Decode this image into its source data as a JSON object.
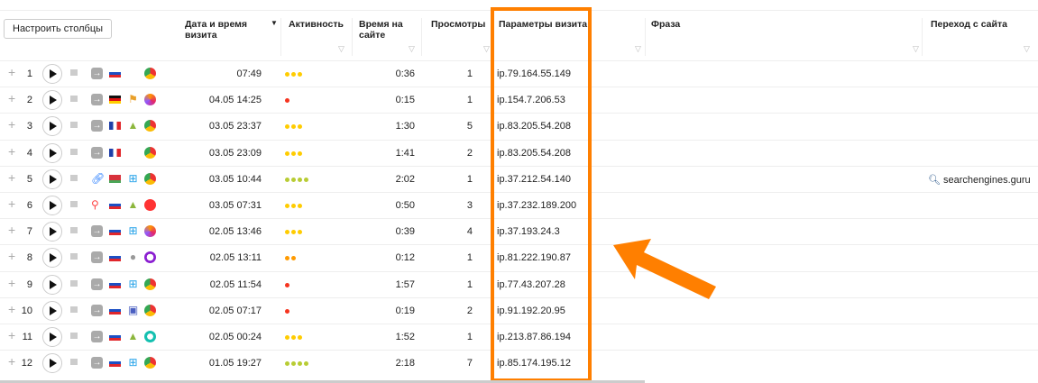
{
  "toolbar": {
    "configure_columns": "Настроить столбцы"
  },
  "headers": {
    "date": "Дата и время визита",
    "activity": "Активность",
    "time": "Время на сайте",
    "views": "Просмотры",
    "params": "Параметры визита",
    "phrase": "Фраза",
    "referrer": "Переход с сайта"
  },
  "colors": {
    "highlight": "#ff7f00",
    "dot_yellow": "#ffcc00",
    "dot_red": "#f5341f",
    "dot_green": "#b8cc34",
    "dot_orange": "#ff9a00"
  },
  "rows": [
    {
      "n": "1",
      "source": "arrow",
      "flag": "ru",
      "os": "",
      "browser": "chrome",
      "date": "07:49",
      "dots": 3,
      "dot_color": "yellow",
      "time": "0:36",
      "views": "1",
      "ip": "ip.79.164.55.149",
      "ref": ""
    },
    {
      "n": "2",
      "source": "arrow",
      "flag": "de",
      "os": "windows-xp",
      "browser": "firefox",
      "date": "04.05 14:25",
      "dots": 1,
      "dot_color": "red",
      "time": "0:15",
      "views": "1",
      "ip": "ip.154.7.206.53",
      "ref": ""
    },
    {
      "n": "3",
      "source": "arrow",
      "flag": "fr",
      "os": "android",
      "browser": "chrome",
      "date": "03.05 23:37",
      "dots": 3,
      "dot_color": "yellow",
      "time": "1:30",
      "views": "5",
      "ip": "ip.83.205.54.208",
      "ref": ""
    },
    {
      "n": "4",
      "source": "arrow",
      "flag": "fr",
      "os": "",
      "browser": "chrome",
      "date": "03.05 23:09",
      "dots": 3,
      "dot_color": "yellow",
      "time": "1:41",
      "views": "2",
      "ip": "ip.83.205.54.208",
      "ref": ""
    },
    {
      "n": "5",
      "source": "link",
      "flag": "by",
      "os": "windows",
      "browser": "chrome",
      "date": "03.05 10:44",
      "dots": 4,
      "dot_color": "green",
      "time": "2:02",
      "views": "1",
      "ip": "ip.37.212.54.140",
      "ref": "searchengines.guru"
    },
    {
      "n": "6",
      "source": "search",
      "flag": "ru",
      "os": "android",
      "browser": "yandex",
      "date": "03.05 07:31",
      "dots": 3,
      "dot_color": "yellow",
      "time": "0:50",
      "views": "3",
      "ip": "ip.37.232.189.200",
      "ref": ""
    },
    {
      "n": "7",
      "source": "arrow",
      "flag": "ru",
      "os": "windows",
      "browser": "firefox",
      "date": "02.05 13:46",
      "dots": 3,
      "dot_color": "yellow",
      "time": "0:39",
      "views": "4",
      "ip": "ip.37.193.24.3",
      "ref": ""
    },
    {
      "n": "8",
      "source": "arrow",
      "flag": "ru",
      "os": "apple",
      "browser": "opera",
      "date": "02.05 13:11",
      "dots": 2,
      "dot_color": "orange",
      "time": "0:12",
      "views": "1",
      "ip": "ip.81.222.190.87",
      "ref": ""
    },
    {
      "n": "9",
      "source": "arrow",
      "flag": "ru",
      "os": "windows",
      "browser": "chrome",
      "date": "02.05 11:54",
      "dots": 1,
      "dot_color": "red",
      "time": "1:57",
      "views": "1",
      "ip": "ip.77.43.207.28",
      "ref": ""
    },
    {
      "n": "10",
      "source": "arrow",
      "flag": "ru",
      "os": "mac",
      "browser": "chrome",
      "date": "02.05 07:17",
      "dots": 1,
      "dot_color": "red",
      "time": "0:19",
      "views": "2",
      "ip": "ip.91.192.20.95",
      "ref": ""
    },
    {
      "n": "11",
      "source": "arrow",
      "flag": "ru",
      "os": "android",
      "browser": "atom",
      "date": "02.05 00:24",
      "dots": 3,
      "dot_color": "yellow",
      "time": "1:52",
      "views": "1",
      "ip": "ip.213.87.86.194",
      "ref": ""
    },
    {
      "n": "12",
      "source": "arrow",
      "flag": "ru",
      "os": "windows",
      "browser": "chrome",
      "date": "01.05 19:27",
      "dots": 4,
      "dot_color": "green",
      "time": "2:18",
      "views": "7",
      "ip": "ip.85.174.195.12",
      "ref": ""
    }
  ]
}
